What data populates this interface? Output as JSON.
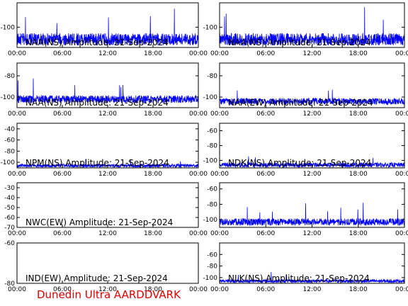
{
  "footer": "Dunedin Ultra AARDDVARK",
  "colors": {
    "trace": "#0000ff",
    "axes": "#000000",
    "footer": "#e00000"
  },
  "chart_data": [
    {
      "type": "line",
      "title": "NAA(NS) Amplitude: 21-Sep-2024",
      "series_color": "#0000ff",
      "x_ticks": [
        "00:00",
        "06:00",
        "12:00",
        "18:00",
        "00:00"
      ],
      "xlim": [
        0,
        24
      ],
      "ylim": [
        -110,
        -88
      ],
      "y_ticks": [
        -100
      ],
      "baseline": -106,
      "noise": 3.0,
      "spikes": 5
    },
    {
      "type": "line",
      "title": "NAA(NS) Amplitude: 21-Sep-2024",
      "series_color": "#0000ff",
      "x_ticks": [
        "00:00",
        "06:00",
        "12:00",
        "18:00",
        "00:00"
      ],
      "xlim": [
        0,
        24
      ],
      "ylim": [
        -110,
        -88
      ],
      "y_ticks": [
        -100
      ],
      "baseline": -106,
      "noise": 3.0,
      "spikes": 4
    },
    {
      "type": "line",
      "title": "NAA(NS) Amplitude: 21-Sep-2024",
      "series_color": "#0000ff",
      "x_ticks": [
        "00:00",
        "06:00",
        "12:00",
        "18:00",
        "00:00"
      ],
      "xlim": [
        0,
        24
      ],
      "ylim": [
        -110,
        -68
      ],
      "y_ticks": [
        -100,
        -80
      ],
      "baseline": -102,
      "noise": 3.5,
      "spikes": 6
    },
    {
      "type": "line",
      "title": "NAA(EW) Amplitude: 21-Sep-2024",
      "series_color": "#0000ff",
      "x_ticks": [
        "00:00",
        "06:00",
        "12:00",
        "18:00",
        "00:00"
      ],
      "xlim": [
        0,
        24
      ],
      "ylim": [
        -110,
        -68
      ],
      "y_ticks": [
        -100,
        -80
      ],
      "baseline": -104,
      "noise": 3.0,
      "spikes": 3
    },
    {
      "type": "line",
      "title": "NPM(NS) Amplitude: 21-Sep-2024",
      "series_color": "#0000ff",
      "x_ticks": [
        "00:00",
        "06:00",
        "12:00",
        "18:00",
        "00:00"
      ],
      "xlim": [
        0,
        24
      ],
      "ylim": [
        -110,
        -30
      ],
      "y_ticks": [
        -100,
        -80,
        -60,
        -40
      ],
      "baseline": -106,
      "noise": 3.0,
      "spikes": 3
    },
    {
      "type": "line",
      "title": "NDK(NS) Amplitude: 21-Sep-2024",
      "series_color": "#0000ff",
      "x_ticks": [
        "00:00",
        "06:00",
        "12:00",
        "18:00",
        "00:00"
      ],
      "xlim": [
        0,
        24
      ],
      "ylim": [
        -110,
        -50
      ],
      "y_ticks": [
        -100,
        -80,
        -60
      ],
      "baseline": -106,
      "noise": 3.0,
      "spikes": 3
    },
    {
      "type": "line",
      "title": "NWC(EW) Amplitude: 21-Sep-2024",
      "series_color": "#0000ff",
      "x_ticks": [
        "00:00",
        "06:00",
        "12:00",
        "18:00",
        "00:00"
      ],
      "xlim": [
        0,
        24
      ],
      "ylim": [
        -70,
        -25
      ],
      "y_ticks": [
        -70,
        -60,
        -50,
        -40,
        -30
      ],
      "has_data": false
    },
    {
      "type": "line",
      "title": "",
      "series_color": "#0000ff",
      "x_ticks": [
        "00:00",
        "06:00",
        "12:00",
        "18:00",
        "00:00"
      ],
      "xlim": [
        0,
        24
      ],
      "ylim": [
        -110,
        -52
      ],
      "y_ticks": [
        -100,
        -80,
        -60
      ],
      "baseline": -103,
      "noise": 4.5,
      "spikes": 9
    },
    {
      "type": "line",
      "title": "IND(EW) Amplitude: 21-Sep-2024",
      "series_color": "#0000ff",
      "x_ticks": [
        "00:00",
        "06:00",
        "12:00",
        "18:00",
        "00:00"
      ],
      "xlim": [
        0,
        24
      ],
      "ylim": [
        -80,
        -60
      ],
      "y_ticks": [
        -80,
        -60
      ],
      "has_data": false
    },
    {
      "type": "line",
      "title": "NLK(NS) Amplitude: 21-Sep-2024",
      "series_color": "#0000ff",
      "x_ticks": [
        "00:00",
        "06:00",
        "12:00",
        "18:00",
        "00:00"
      ],
      "xlim": [
        0,
        24
      ],
      "ylim": [
        -110,
        -40
      ],
      "y_ticks": [
        -100,
        -80,
        -60
      ],
      "baseline": -106,
      "noise": 3.0,
      "spikes": 3
    }
  ]
}
